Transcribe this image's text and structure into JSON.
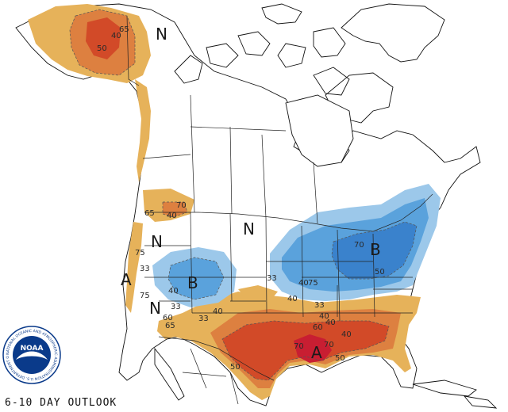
{
  "footer_label": "6-10 DAY OUTLOOK",
  "logo": {
    "name": "NOAA",
    "ring_text": "NATIONAL OCEANIC AND ATMOSPHERIC ADMINISTRATION U.S. DEPARTMENT OF COMMERCE"
  },
  "legend_colors": {
    "above_light": "#e6b25a",
    "above_mid": "#dd8040",
    "above_strong": "#d24a28",
    "above_max": "#c81e32",
    "below_light": "#9cc8ea",
    "below_mid": "#5aa2dc",
    "below_strong": "#3a82cc"
  },
  "category_letters": {
    "alaska_n": "N",
    "west_n": "N",
    "central_n": "N",
    "southwest_n": "N",
    "west_a": "A",
    "south_a": "A",
    "west_b": "B",
    "east_b": "B"
  },
  "contour_labels": {
    "ak_65": "65",
    "ak_40": "40",
    "ak_50": "50",
    "pnw_70": "70",
    "pnw_40": "40",
    "pnw_65": "65",
    "west_75": "75",
    "west_33a": "33",
    "west_40": "40",
    "west_33b": "33",
    "west_75b": "75",
    "sw_60": "60",
    "sw_65": "65",
    "sw_33": "33",
    "sw_40": "40",
    "plains_33": "33",
    "plains_40": "40",
    "plains_75": "75",
    "tx_40": "40",
    "east_70": "70",
    "east_50": "50",
    "gulf_33": "33",
    "gulf_40": "40",
    "gulf_60": "60",
    "gulf_70": "70",
    "gulf_70b": "70",
    "se_50": "50",
    "se_40": "40",
    "sw_50": "50",
    "south_40": "40"
  }
}
